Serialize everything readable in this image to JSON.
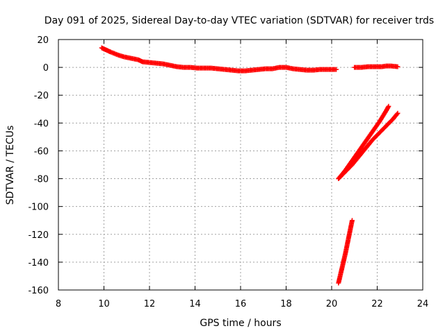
{
  "chart_data": {
    "type": "scatter",
    "title": "Day 091 of 2025, Sidereal Day-to-day VTEC variation (SDTVAR) for receiver trds",
    "xlabel": "GPS time / hours",
    "ylabel": "SDTVAR / TECUs",
    "xlim": [
      8,
      24
    ],
    "ylim": [
      -160,
      20
    ],
    "xticks": [
      8,
      10,
      12,
      14,
      16,
      18,
      20,
      22,
      24
    ],
    "yticks": [
      20,
      0,
      -20,
      -40,
      -60,
      -80,
      -100,
      -120,
      -140,
      -160
    ],
    "grid": true,
    "legend": "none",
    "marker": "plus",
    "color": "#ff0000",
    "series": [
      {
        "points": [
          [
            9.9,
            14
          ],
          [
            10.1,
            12.5
          ],
          [
            10.3,
            11
          ],
          [
            10.6,
            9
          ],
          [
            10.9,
            7.5
          ],
          [
            11.2,
            6.5
          ],
          [
            11.5,
            5.5
          ],
          [
            11.7,
            4
          ],
          [
            12.0,
            3.5
          ],
          [
            12.3,
            3
          ],
          [
            12.6,
            2.5
          ],
          [
            12.9,
            1.5
          ],
          [
            13.2,
            0.5
          ],
          [
            13.5,
            0
          ],
          [
            13.8,
            0
          ],
          [
            14.1,
            -0.5
          ],
          [
            14.4,
            -0.5
          ],
          [
            14.7,
            -0.5
          ],
          [
            15.0,
            -1
          ],
          [
            15.3,
            -1.5
          ],
          [
            15.6,
            -2
          ],
          [
            15.9,
            -2.5
          ],
          [
            16.2,
            -2.5
          ],
          [
            16.5,
            -2
          ],
          [
            16.8,
            -1.5
          ],
          [
            17.1,
            -1
          ],
          [
            17.4,
            -1
          ],
          [
            17.7,
            0
          ],
          [
            18.0,
            0
          ],
          [
            18.3,
            -1
          ],
          [
            18.6,
            -1.5
          ],
          [
            18.9,
            -2
          ],
          [
            19.2,
            -2
          ],
          [
            19.5,
            -1.5
          ],
          [
            19.8,
            -1.5
          ],
          [
            20.1,
            -1.5
          ],
          [
            20.2,
            -1.5
          ]
        ]
      },
      {
        "points": [
          [
            21.0,
            0
          ],
          [
            21.3,
            0
          ],
          [
            21.6,
            0.5
          ],
          [
            21.9,
            0.5
          ],
          [
            22.2,
            0.5
          ],
          [
            22.4,
            1
          ],
          [
            22.6,
            1
          ],
          [
            22.9,
            0.5
          ]
        ]
      },
      {
        "points": [
          [
            20.3,
            -80
          ],
          [
            20.6,
            -74
          ],
          [
            20.9,
            -67
          ],
          [
            21.2,
            -60
          ],
          [
            21.5,
            -53
          ],
          [
            21.8,
            -46
          ],
          [
            22.1,
            -39
          ],
          [
            22.4,
            -31
          ],
          [
            22.5,
            -28
          ]
        ]
      },
      {
        "points": [
          [
            20.3,
            -80
          ],
          [
            20.6,
            -75
          ],
          [
            20.9,
            -70
          ],
          [
            21.2,
            -64
          ],
          [
            21.5,
            -58
          ],
          [
            21.8,
            -52
          ],
          [
            22.1,
            -47
          ],
          [
            22.4,
            -42
          ],
          [
            22.7,
            -37
          ],
          [
            22.9,
            -33
          ]
        ]
      },
      {
        "points": [
          [
            20.3,
            -155
          ],
          [
            20.4,
            -148
          ],
          [
            20.5,
            -141
          ],
          [
            20.6,
            -134
          ],
          [
            20.7,
            -126
          ],
          [
            20.8,
            -118
          ],
          [
            20.9,
            -110
          ]
        ]
      }
    ]
  }
}
